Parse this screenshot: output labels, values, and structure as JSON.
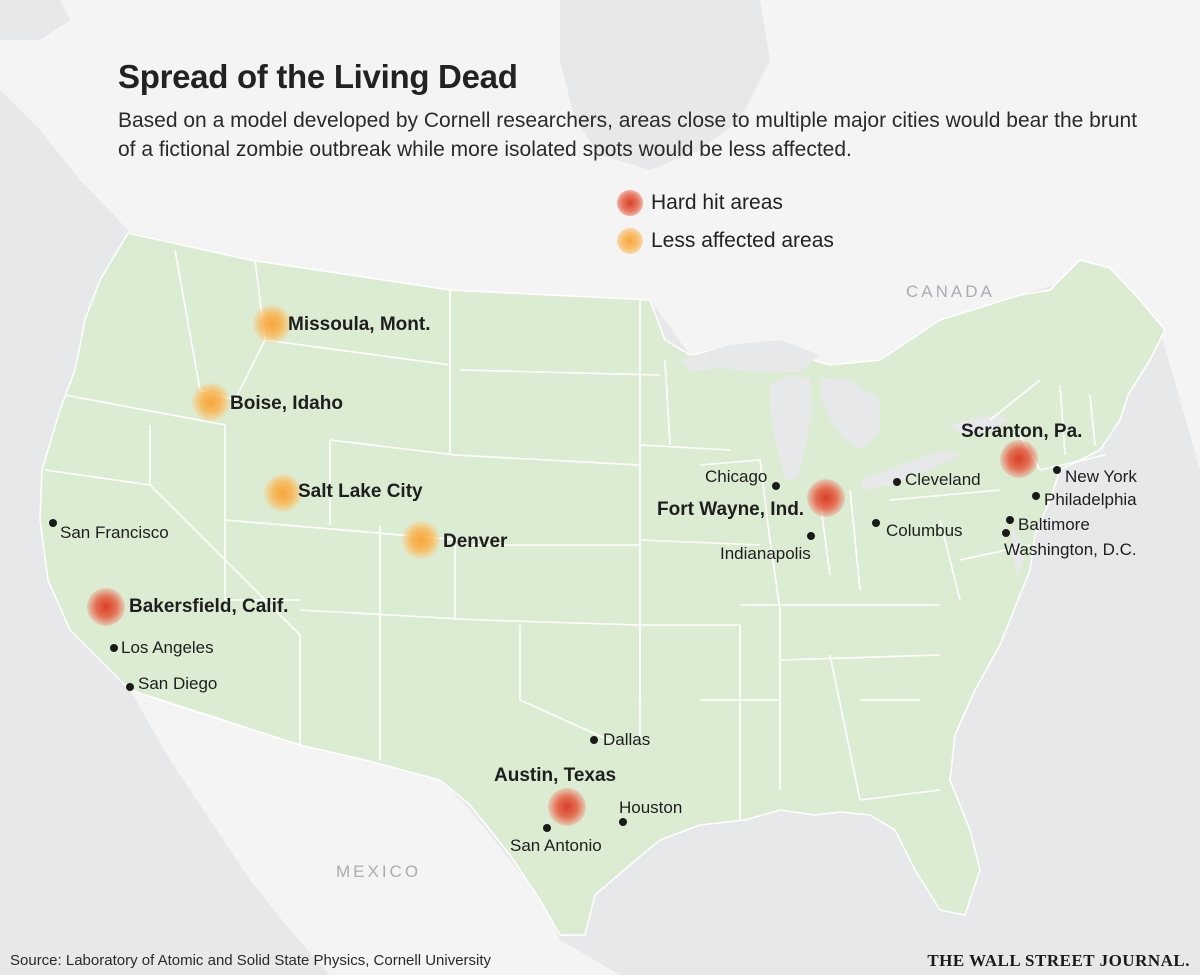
{
  "title": "Spread of the Living Dead",
  "subtitle": "Based on a model developed by Cornell researchers, areas close to multiple major cities would bear the brunt of a fictional zombie outbreak while more isolated spots would be less affected.",
  "legend": {
    "hard_label": "Hard hit areas",
    "less_label": "Less affected areas",
    "hard_color": "#d8402a",
    "less_color": "#f7a63c"
  },
  "regions": {
    "canada": "CANADA",
    "mexico": "MEXICO"
  },
  "hotspots": {
    "missoula": {
      "name": "Missoula, Mont.",
      "severity": "less"
    },
    "boise": {
      "name": "Boise, Idaho",
      "severity": "less"
    },
    "salt_lake": {
      "name": "Salt Lake City",
      "severity": "less"
    },
    "denver": {
      "name": "Denver",
      "severity": "less"
    },
    "bakersfield": {
      "name": "Bakersfield, Calif.",
      "severity": "hard"
    },
    "austin": {
      "name": "Austin, Texas",
      "severity": "hard"
    },
    "fort_wayne": {
      "name": "Fort Wayne, Ind.",
      "severity": "hard"
    },
    "scranton": {
      "name": "Scranton, Pa.",
      "severity": "hard"
    }
  },
  "cities": {
    "san_francisco": "San Francisco",
    "los_angeles": "Los Angeles",
    "san_diego": "San Diego",
    "dallas": "Dallas",
    "houston": "Houston",
    "san_antonio": "San Antonio",
    "chicago": "Chicago",
    "indianapolis": "Indianapolis",
    "cleveland": "Cleveland",
    "columbus": "Columbus",
    "new_york": "New York",
    "philadelphia": "Philadelphia",
    "baltimore": "Baltimore",
    "washington": "Washington, D.C."
  },
  "colors": {
    "land_us": "#dcecd2",
    "land_other": "#f4f4f4",
    "water": "#e7e8e9",
    "borders": "#ffffff"
  },
  "source": "Source: Laboratory of Atomic and Solid State Physics, Cornell University",
  "masthead": "THE WALL STREET JOURNAL."
}
